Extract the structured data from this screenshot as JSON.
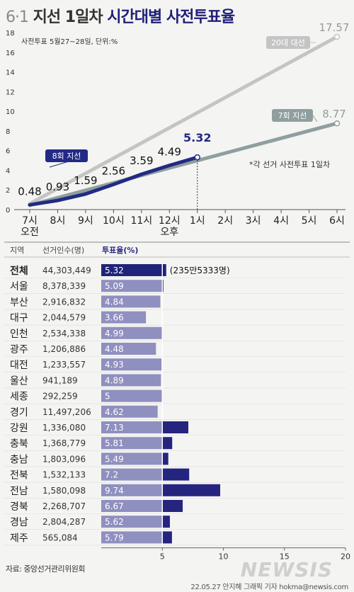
{
  "title": {
    "prefix": "6·1",
    "middle": "지선 1일차",
    "accent": "시간대별 사전투표율"
  },
  "chart_data": [
    {
      "type": "line",
      "subtitle": "사전투표 5월27~28일, 단위:%",
      "note": "*각 선거 사전투표 1일차",
      "x_labels": [
        "7시",
        "8시",
        "9시",
        "10시",
        "11시",
        "12시",
        "1시",
        "2시",
        "3시",
        "4시",
        "5시",
        "6시"
      ],
      "am_label": "오전",
      "pm_label": "오후",
      "ylim": [
        0,
        18
      ],
      "yticks": [
        0,
        2,
        4,
        6,
        8,
        10,
        12,
        14,
        16,
        18
      ],
      "grid": false,
      "series": [
        {
          "name": "20대 대선",
          "color": "#c4c4c4",
          "points": [
            {
              "x": 0,
              "y": 0.6
            },
            {
              "x": 11,
              "y": 17.57
            }
          ],
          "end_label": "17.57"
        },
        {
          "name": "7회 지선",
          "color": "#8f9e9e",
          "points": [
            {
              "x": 0,
              "y": 0.45
            },
            {
              "x": 11,
              "y": 8.77
            }
          ],
          "end_label": "8.77"
        },
        {
          "name": "8회 지선",
          "color": "#222a85",
          "points": [
            {
              "x": 0,
              "y": 0.48
            },
            {
              "x": 1,
              "y": 0.93
            },
            {
              "x": 2,
              "y": 1.59
            },
            {
              "x": 3,
              "y": 2.56
            },
            {
              "x": 4,
              "y": 3.59
            },
            {
              "x": 5,
              "y": 4.49
            },
            {
              "x": 6,
              "y": 5.32
            }
          ],
          "labels": [
            "0.48",
            "0.93",
            "1.59",
            "2.56",
            "3.59",
            "4.49",
            "5.32"
          ]
        }
      ]
    },
    {
      "type": "bar",
      "headers": [
        "지역",
        "선거인수(명)",
        "투표율(%)"
      ],
      "xlim": [
        0,
        20
      ],
      "xticks": [
        5,
        10,
        15,
        20
      ],
      "total_note": "(235만5333명)",
      "colors": {
        "total": "#1f2479",
        "normal": "#8f8fc0",
        "highlight": "#25257f"
      },
      "rows": [
        {
          "region": "전체",
          "electors": "44,303,449",
          "rate": 5.32,
          "label": "5.32"
        },
        {
          "region": "서울",
          "electors": "8,378,339",
          "rate": 5.09,
          "label": "5.09"
        },
        {
          "region": "부산",
          "electors": "2,916,832",
          "rate": 4.84,
          "label": "4.84"
        },
        {
          "region": "대구",
          "electors": "2,044,579",
          "rate": 3.66,
          "label": "3.66"
        },
        {
          "region": "인천",
          "electors": "2,534,338",
          "rate": 4.99,
          "label": "4.99"
        },
        {
          "region": "광주",
          "electors": "1,206,886",
          "rate": 4.48,
          "label": "4.48"
        },
        {
          "region": "대전",
          "electors": "1,233,557",
          "rate": 4.93,
          "label": "4.93"
        },
        {
          "region": "울산",
          "electors": "941,189",
          "rate": 4.89,
          "label": "4.89"
        },
        {
          "region": "세종",
          "electors": "292,259",
          "rate": 5,
          "label": "5"
        },
        {
          "region": "경기",
          "electors": "11,497,206",
          "rate": 4.62,
          "label": "4.62"
        },
        {
          "region": "강원",
          "electors": "1,336,080",
          "rate": 7.13,
          "label": "7.13"
        },
        {
          "region": "충북",
          "electors": "1,368,779",
          "rate": 5.81,
          "label": "5.81"
        },
        {
          "region": "충남",
          "electors": "1,803,096",
          "rate": 5.49,
          "label": "5.49"
        },
        {
          "region": "전북",
          "electors": "1,532,133",
          "rate": 7.2,
          "label": "7.2"
        },
        {
          "region": "전남",
          "electors": "1,580,098",
          "rate": 9.74,
          "label": "9.74"
        },
        {
          "region": "경북",
          "electors": "2,268,707",
          "rate": 6.67,
          "label": "6.67"
        },
        {
          "region": "경남",
          "electors": "2,804,287",
          "rate": 5.62,
          "label": "5.62"
        },
        {
          "region": "제주",
          "electors": "565,084",
          "rate": 5.79,
          "label": "5.79"
        }
      ]
    }
  ],
  "footer": {
    "source": "자료: 중앙선거관리위원회",
    "credit": "22.05.27 안지혜 그래픽 기자 hokma@newsis.com",
    "watermark": "NEWSIS"
  }
}
